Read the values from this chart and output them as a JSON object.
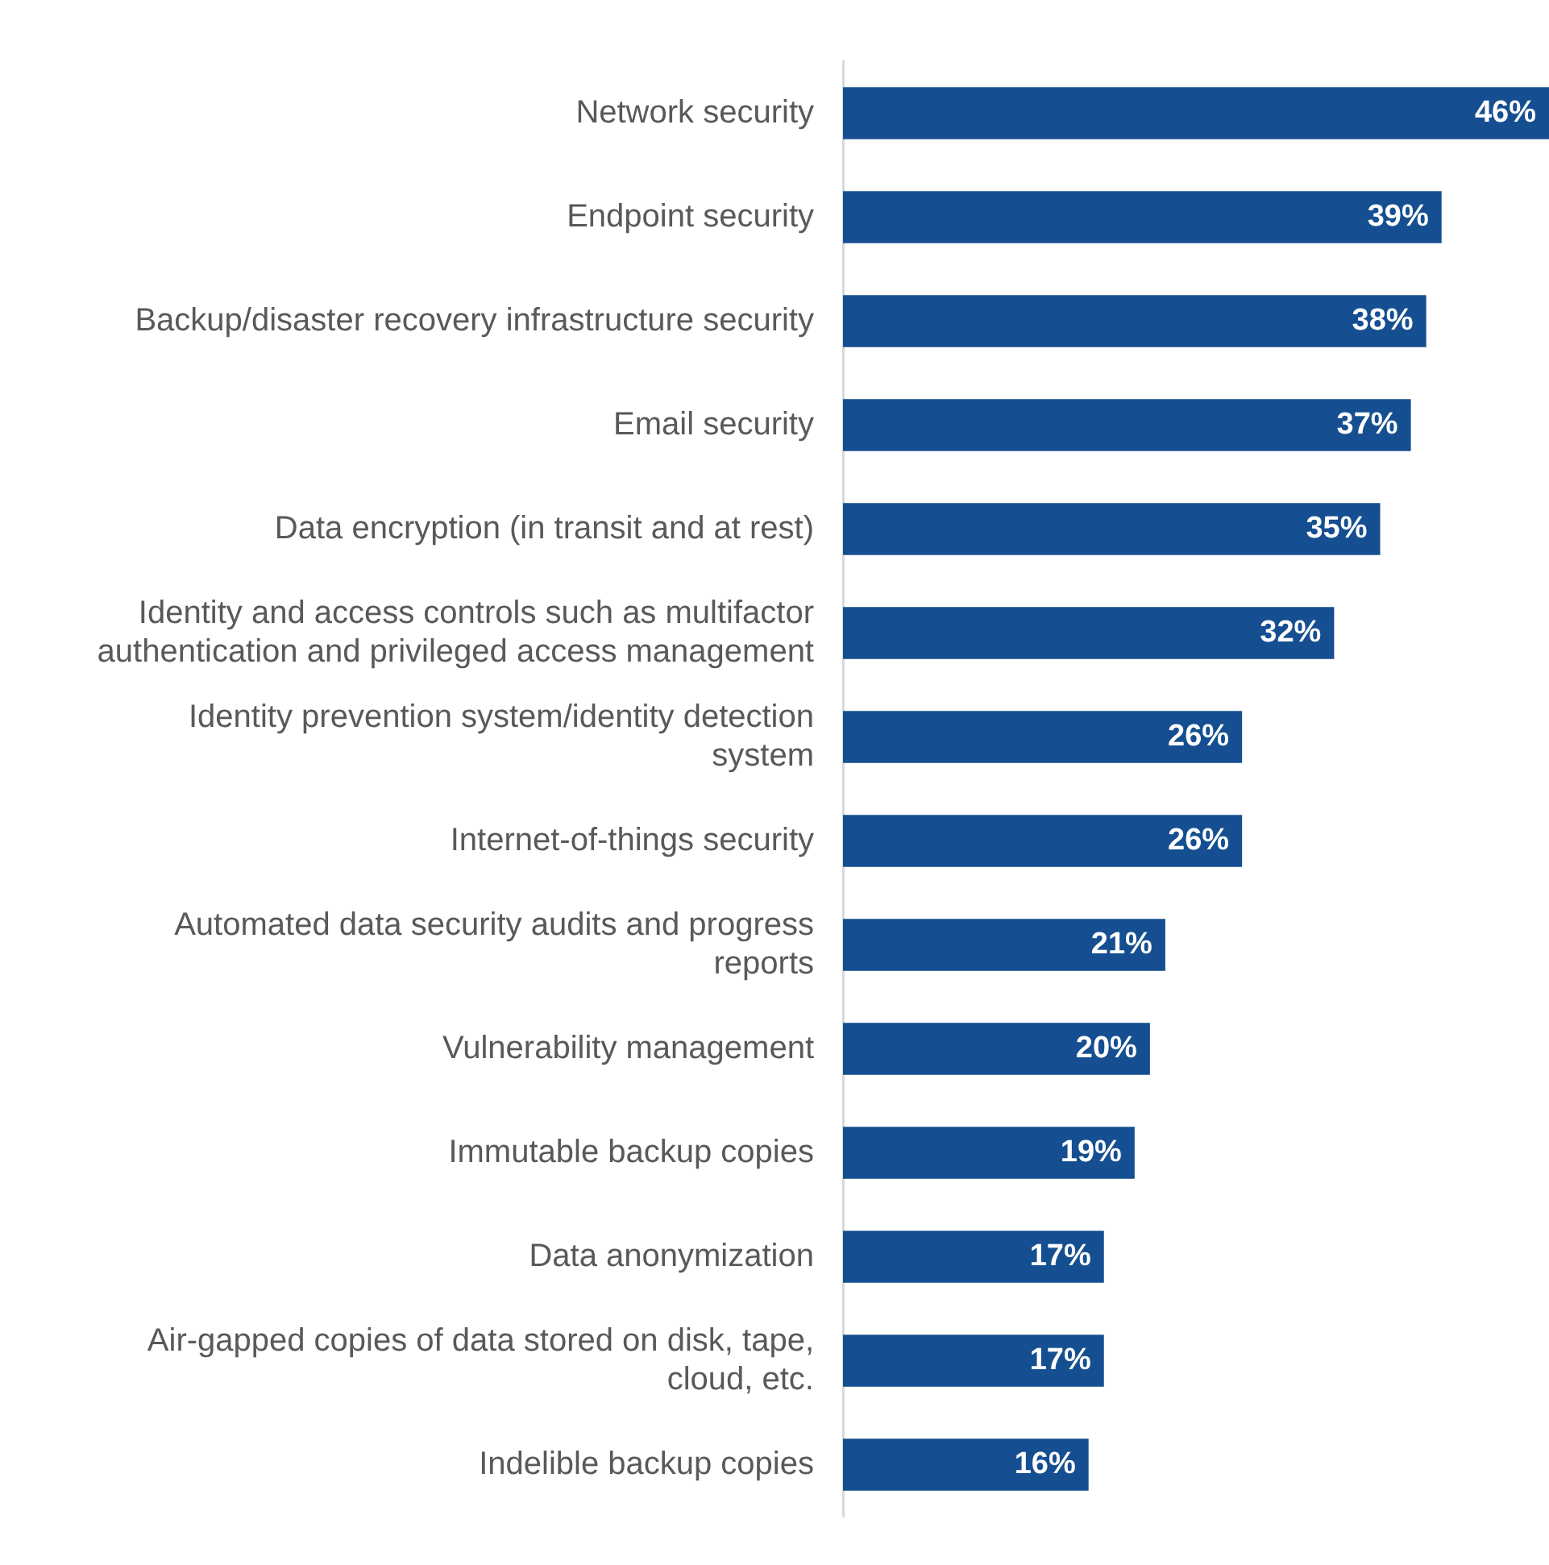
{
  "chart_data": {
    "type": "bar",
    "orientation": "horizontal",
    "categories": [
      "Network security",
      "Endpoint security",
      "Backup/disaster recovery infrastructure security",
      "Email security",
      "Data encryption (in transit and at rest)",
      "Identity and access controls such as multifactor authentication and privileged access management",
      "Identity prevention system/identity detection system",
      "Internet-of-things security",
      "Automated data security audits and progress reports",
      "Vulnerability management",
      "Immutable backup copies",
      "Data anonymization",
      "Air-gapped copies of data stored on disk, tape, cloud, etc.",
      "Indelible backup copies"
    ],
    "values": [
      46,
      39,
      38,
      37,
      35,
      32,
      26,
      26,
      21,
      20,
      19,
      17,
      17,
      16
    ],
    "value_labels": [
      "46%",
      "39%",
      "38%",
      "37%",
      "35%",
      "32%",
      "26%",
      "26%",
      "21%",
      "20%",
      "19%",
      "17%",
      "17%",
      "16%"
    ],
    "color": "#154f91",
    "xlim": [
      0,
      46
    ],
    "tick_labels": "y",
    "grid": false,
    "legend": false
  }
}
